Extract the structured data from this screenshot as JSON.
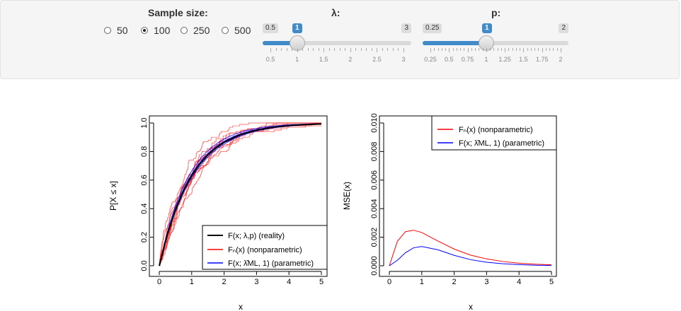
{
  "controls": {
    "sample_size": {
      "label": "Sample size:",
      "options": [
        "50",
        "100",
        "250",
        "500"
      ],
      "selected": "100"
    },
    "lambda": {
      "label": "λ:",
      "min_label": "0.5",
      "max_label": "3",
      "value_label": "1",
      "min": 0.5,
      "max": 3,
      "value": 1,
      "ticks": [
        "0.5",
        "1",
        "1.5",
        "2",
        "2.5",
        "3"
      ]
    },
    "p": {
      "label": "p:",
      "min_label": "0.25",
      "max_label": "2",
      "value_label": "1",
      "min": 0.25,
      "max": 2,
      "value": 1,
      "ticks": [
        "0.25",
        "0.5",
        "0.75",
        "1",
        "1.25",
        "1.5",
        "1.75",
        "2"
      ]
    }
  },
  "chart_data": [
    {
      "type": "line",
      "xlabel": "x",
      "ylabel": "P[X ≤ x]",
      "xlim": [
        0,
        5
      ],
      "ylim": [
        0,
        1
      ],
      "xticks": [
        "0",
        "1",
        "2",
        "3",
        "4",
        "5"
      ],
      "yticks": [
        "0.0",
        "0.2",
        "0.4",
        "0.6",
        "0.8",
        "1.0"
      ],
      "legend_position": "bottom-right",
      "legend": [
        {
          "text": "F(x; λ,p) (reality)",
          "color": "#000000"
        },
        {
          "text": "Fₙ(x) (nonparametric)",
          "color": "#ff0000"
        },
        {
          "text": "F(x; λ̂ML, 1) (parametric)",
          "color": "#0000ff"
        }
      ],
      "series": [
        {
          "name": "F(x; λ,p) (reality)",
          "color": "#000000",
          "x": [
            0,
            0.25,
            0.5,
            0.75,
            1,
            1.25,
            1.5,
            1.75,
            2,
            2.5,
            3,
            3.5,
            4,
            4.5,
            5
          ],
          "y": [
            0,
            0.221,
            0.393,
            0.528,
            0.632,
            0.713,
            0.777,
            0.826,
            0.865,
            0.918,
            0.95,
            0.97,
            0.982,
            0.989,
            0.993
          ]
        }
      ]
    },
    {
      "type": "line",
      "xlabel": "x",
      "ylabel": "MSE(x)",
      "xlim": [
        0,
        5
      ],
      "ylim": [
        0,
        0.01
      ],
      "xticks": [
        "0",
        "1",
        "2",
        "3",
        "4",
        "5"
      ],
      "yticks": [
        "0.000",
        "0.002",
        "0.004",
        "0.006",
        "0.008",
        "0.010"
      ],
      "legend_position": "top-right",
      "series": [
        {
          "name": "Fₙ(x) (nonparametric)",
          "color": "#ff0000",
          "x": [
            0,
            0.25,
            0.5,
            0.75,
            1,
            1.5,
            2,
            2.5,
            3,
            3.5,
            4,
            4.5,
            5
          ],
          "y": [
            0,
            0.00172,
            0.00239,
            0.00249,
            0.00233,
            0.00173,
            0.00117,
            0.00075,
            0.00048,
            0.0003,
            0.00018,
            0.00011,
            7e-05
          ]
        },
        {
          "name": "F(x; λ̂ML, 1) (parametric)",
          "color": "#0000ff",
          "x": [
            0,
            0.25,
            0.5,
            0.75,
            1,
            1.5,
            2,
            2.5,
            3,
            3.5,
            4,
            4.5,
            5
          ],
          "y": [
            0,
            0.00039,
            0.00092,
            0.00126,
            0.00135,
            0.00112,
            0.00073,
            0.00043,
            0.00025,
            0.00014,
            8e-05,
            4e-05,
            2e-05
          ]
        }
      ]
    }
  ]
}
